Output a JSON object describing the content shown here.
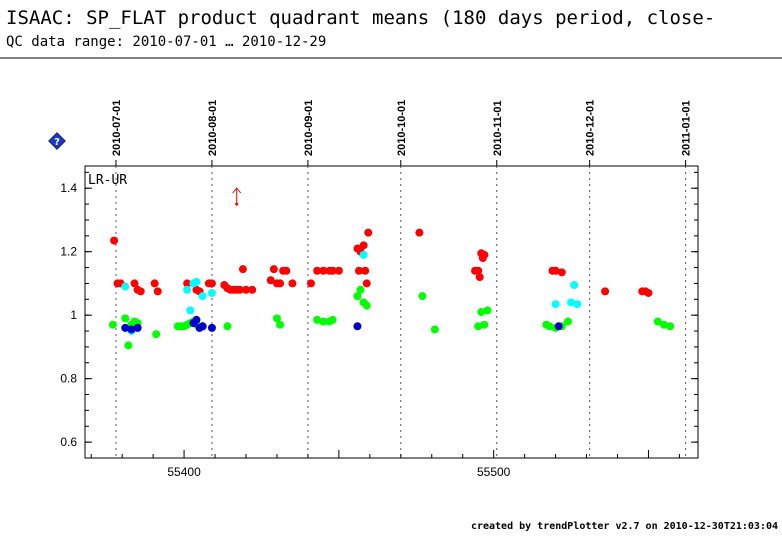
{
  "header": {
    "title": "ISAAC: SP_FLAT product quadrant means (180 days period, close-",
    "subtitle": "QC data range: 2010-07-01 … 2010-12-29"
  },
  "footer": {
    "text": "created by trendPlotter v2.7 on 2010-12-30T21:03:04"
  },
  "info_icon": {
    "name": "info-diamond-icon",
    "glyph": "?"
  },
  "chart_data": {
    "type": "scatter",
    "panel_label": "LR-UR",
    "xlim": [
      55368,
      55566
    ],
    "ylim": [
      0.55,
      1.47
    ],
    "x_ticks": [
      55400,
      55500
    ],
    "x_tick_labels": [
      "55400",
      "55500"
    ],
    "y_ticks": [
      0.6,
      0.8,
      1.0,
      1.2,
      1.4
    ],
    "y_tick_labels": [
      "0.6",
      "0.8",
      "1",
      "1.2",
      "1.4"
    ],
    "date_markers": [
      {
        "label": "2010-07-01",
        "x": 55378
      },
      {
        "label": "2010-08-01",
        "x": 55409
      },
      {
        "label": "2010-09-01",
        "x": 55440
      },
      {
        "label": "2010-10-01",
        "x": 55470
      },
      {
        "label": "2010-11-01",
        "x": 55501
      },
      {
        "label": "2010-12-01",
        "x": 55531
      },
      {
        "label": "2011-01-01",
        "x": 55562
      }
    ],
    "out_of_range_arrow": {
      "x": 55417,
      "y_from": 1.35,
      "color": "#ff0000"
    },
    "series": [
      {
        "color": "#ff0000",
        "points": [
          [
            55377.4,
            1.235
          ],
          [
            55378.5,
            1.1
          ],
          [
            55379.5,
            1.1
          ],
          [
            55384,
            1.1
          ],
          [
            55385,
            1.08
          ],
          [
            55386,
            1.075
          ],
          [
            55390.5,
            1.1
          ],
          [
            55391.5,
            1.075
          ],
          [
            55401,
            1.1
          ],
          [
            55404,
            1.08
          ],
          [
            55405,
            1.075
          ],
          [
            55408,
            1.1
          ],
          [
            55409,
            1.1
          ],
          [
            55413,
            1.095
          ],
          [
            55414,
            1.085
          ],
          [
            55415,
            1.08
          ],
          [
            55416,
            1.08
          ],
          [
            55417,
            1.08
          ],
          [
            55418,
            1.08
          ],
          [
            55419,
            1.145
          ],
          [
            55420,
            1.08
          ],
          [
            55422,
            1.08
          ],
          [
            55428,
            1.11
          ],
          [
            55429,
            1.145
          ],
          [
            55430,
            1.1
          ],
          [
            55431,
            1.1
          ],
          [
            55432,
            1.14
          ],
          [
            55433,
            1.14
          ],
          [
            55435,
            1.1
          ],
          [
            55441,
            1.1
          ],
          [
            55443,
            1.14
          ],
          [
            55445,
            1.14
          ],
          [
            55447,
            1.14
          ],
          [
            55448,
            1.14
          ],
          [
            55450,
            1.14
          ],
          [
            55456,
            1.21
          ],
          [
            55456.5,
            1.14
          ],
          [
            55457,
            1.2
          ],
          [
            55458,
            1.22
          ],
          [
            55458.5,
            1.14
          ],
          [
            55459,
            1.1
          ],
          [
            55459.5,
            1.26
          ],
          [
            55476,
            1.26
          ],
          [
            55494,
            1.14
          ],
          [
            55495,
            1.14
          ],
          [
            55495.5,
            1.12
          ],
          [
            55496,
            1.195
          ],
          [
            55496.5,
            1.18
          ],
          [
            55497,
            1.19
          ],
          [
            55519,
            1.14
          ],
          [
            55520,
            1.14
          ],
          [
            55522,
            1.135
          ],
          [
            55536,
            1.075
          ],
          [
            55548,
            1.075
          ],
          [
            55549,
            1.075
          ],
          [
            55550,
            1.07
          ]
        ]
      },
      {
        "color": "#00ff00",
        "points": [
          [
            55377,
            0.97
          ],
          [
            55381,
            0.99
          ],
          [
            55382,
            0.905
          ],
          [
            55383,
            0.97
          ],
          [
            55384,
            0.98
          ],
          [
            55385,
            0.975
          ],
          [
            55391,
            0.94
          ],
          [
            55398,
            0.965
          ],
          [
            55399,
            0.965
          ],
          [
            55400,
            0.965
          ],
          [
            55401,
            0.97
          ],
          [
            55402,
            0.975
          ],
          [
            55403,
            0.98
          ],
          [
            55404,
            0.97
          ],
          [
            55406,
            0.965
          ],
          [
            55414,
            0.965
          ],
          [
            55430,
            0.99
          ],
          [
            55431,
            0.97
          ],
          [
            55443,
            0.985
          ],
          [
            55445,
            0.98
          ],
          [
            55447,
            0.98
          ],
          [
            55448,
            0.985
          ],
          [
            55456,
            1.06
          ],
          [
            55457,
            1.08
          ],
          [
            55458,
            1.04
          ],
          [
            55459,
            1.03
          ],
          [
            55477,
            1.06
          ],
          [
            55481,
            0.955
          ],
          [
            55495,
            0.965
          ],
          [
            55496,
            1.01
          ],
          [
            55497,
            0.97
          ],
          [
            55498,
            1.015
          ],
          [
            55517,
            0.97
          ],
          [
            55518,
            0.965
          ],
          [
            55520,
            0.96
          ],
          [
            55522,
            0.965
          ],
          [
            55524,
            0.98
          ],
          [
            55553,
            0.98
          ],
          [
            55555,
            0.97
          ],
          [
            55557,
            0.965
          ]
        ]
      },
      {
        "color": "#00ffff",
        "points": [
          [
            55381,
            1.09
          ],
          [
            55383,
            0.95
          ],
          [
            55401,
            1.08
          ],
          [
            55402,
            1.015
          ],
          [
            55403,
            1.1
          ],
          [
            55404,
            1.105
          ],
          [
            55406,
            1.06
          ],
          [
            55409,
            1.07
          ],
          [
            55458,
            1.19
          ],
          [
            55520,
            1.035
          ],
          [
            55525,
            1.04
          ],
          [
            55526,
            1.095
          ],
          [
            55527,
            1.035
          ]
        ]
      },
      {
        "color": "#0000cc",
        "points": [
          [
            55381,
            0.96
          ],
          [
            55383,
            0.955
          ],
          [
            55385,
            0.96
          ],
          [
            55403,
            0.975
          ],
          [
            55404,
            0.985
          ],
          [
            55405,
            0.96
          ],
          [
            55406,
            0.965
          ],
          [
            55409,
            0.96
          ],
          [
            55456,
            0.965
          ],
          [
            55521,
            0.965
          ]
        ]
      }
    ]
  }
}
